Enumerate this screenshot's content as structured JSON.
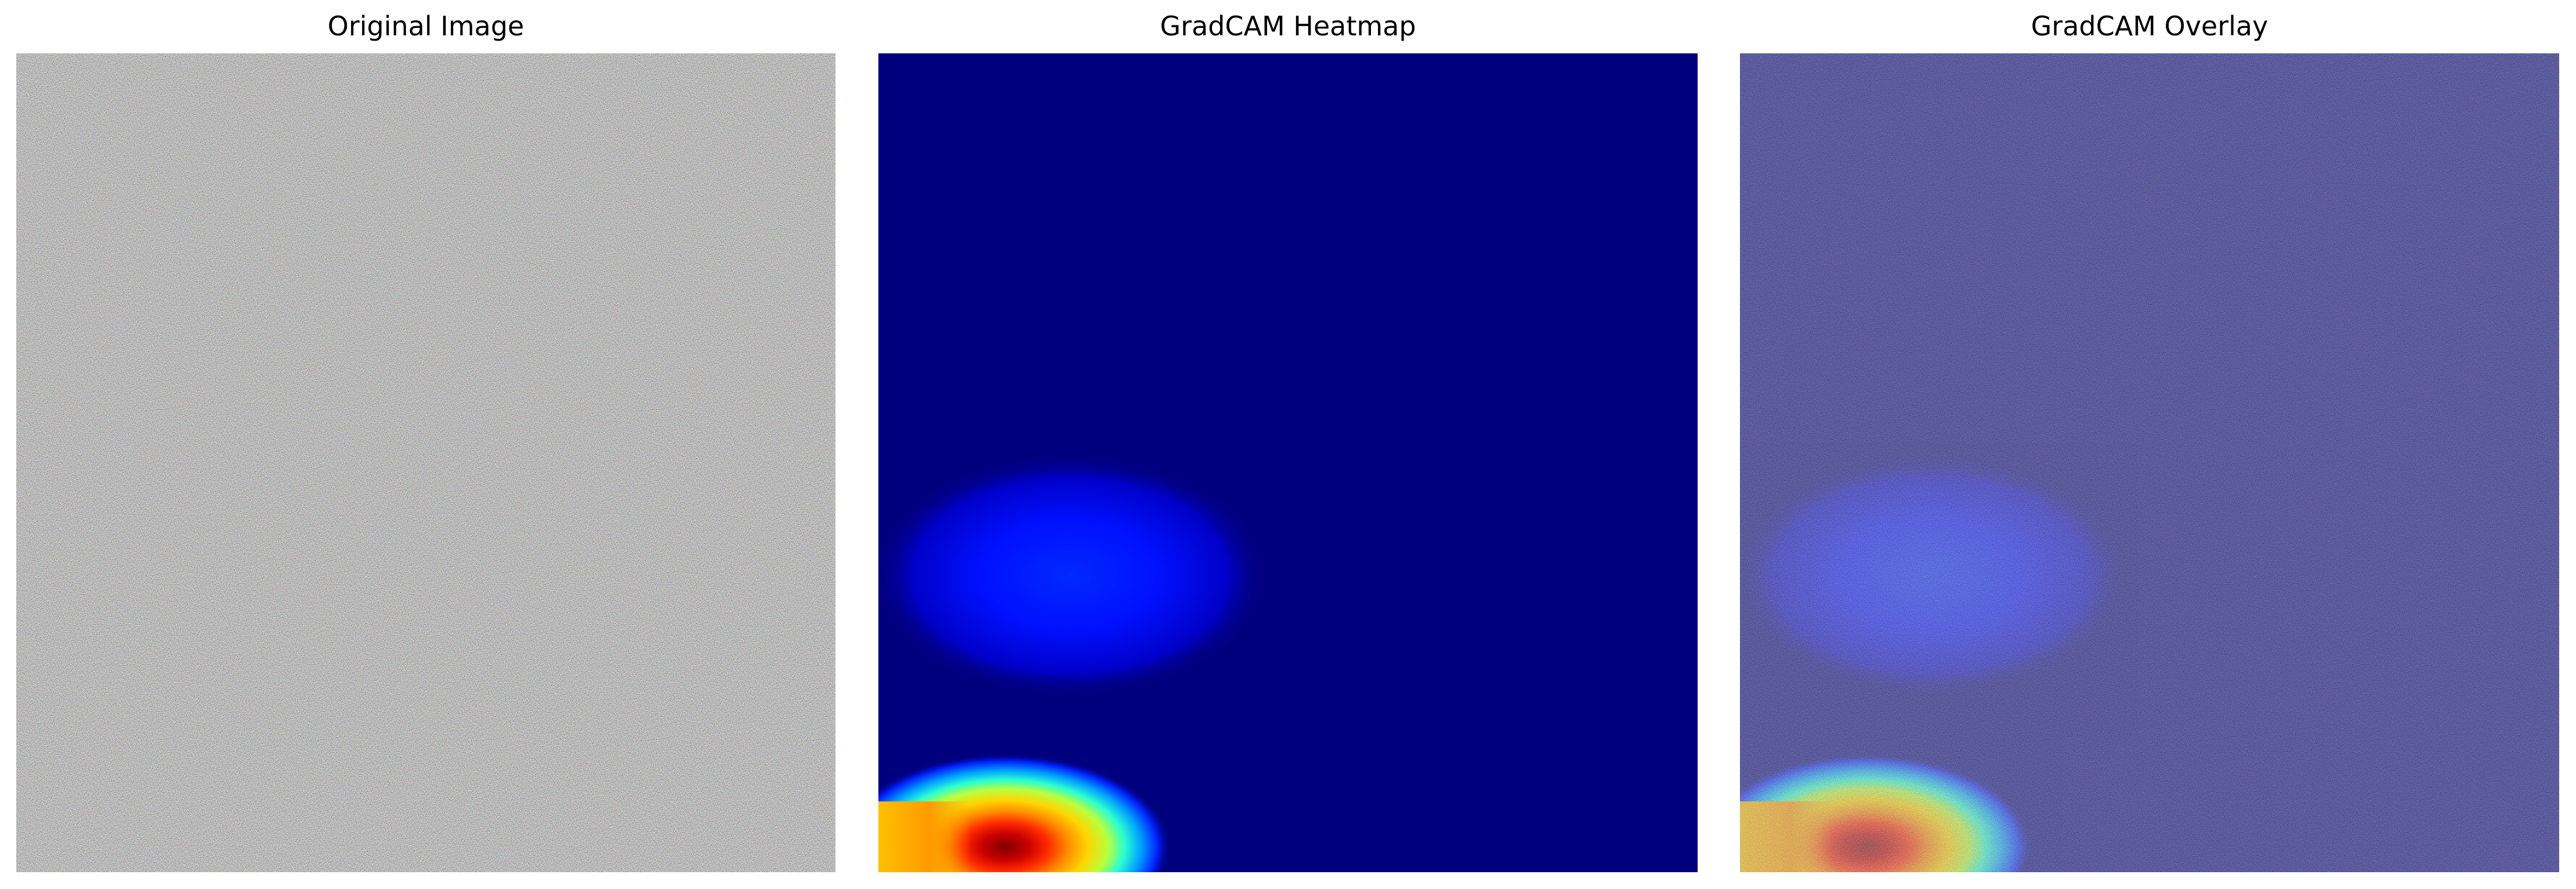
{
  "panels": [
    {
      "title": "Original Image"
    },
    {
      "title": "GradCAM Heatmap"
    },
    {
      "title": "GradCAM Overlay"
    }
  ],
  "colors": {
    "background": "#ffffff",
    "heatmap_base": "#00007f",
    "noise_mean": "#7f7f7f"
  },
  "heatmap": {
    "colormap": "jet",
    "hotspots": [
      {
        "region": "bottom-left",
        "strength": 1.0
      },
      {
        "region": "left-middle-lower",
        "strength": 0.35
      }
    ]
  },
  "overlay": {
    "heatmap_alpha": 0.5
  }
}
